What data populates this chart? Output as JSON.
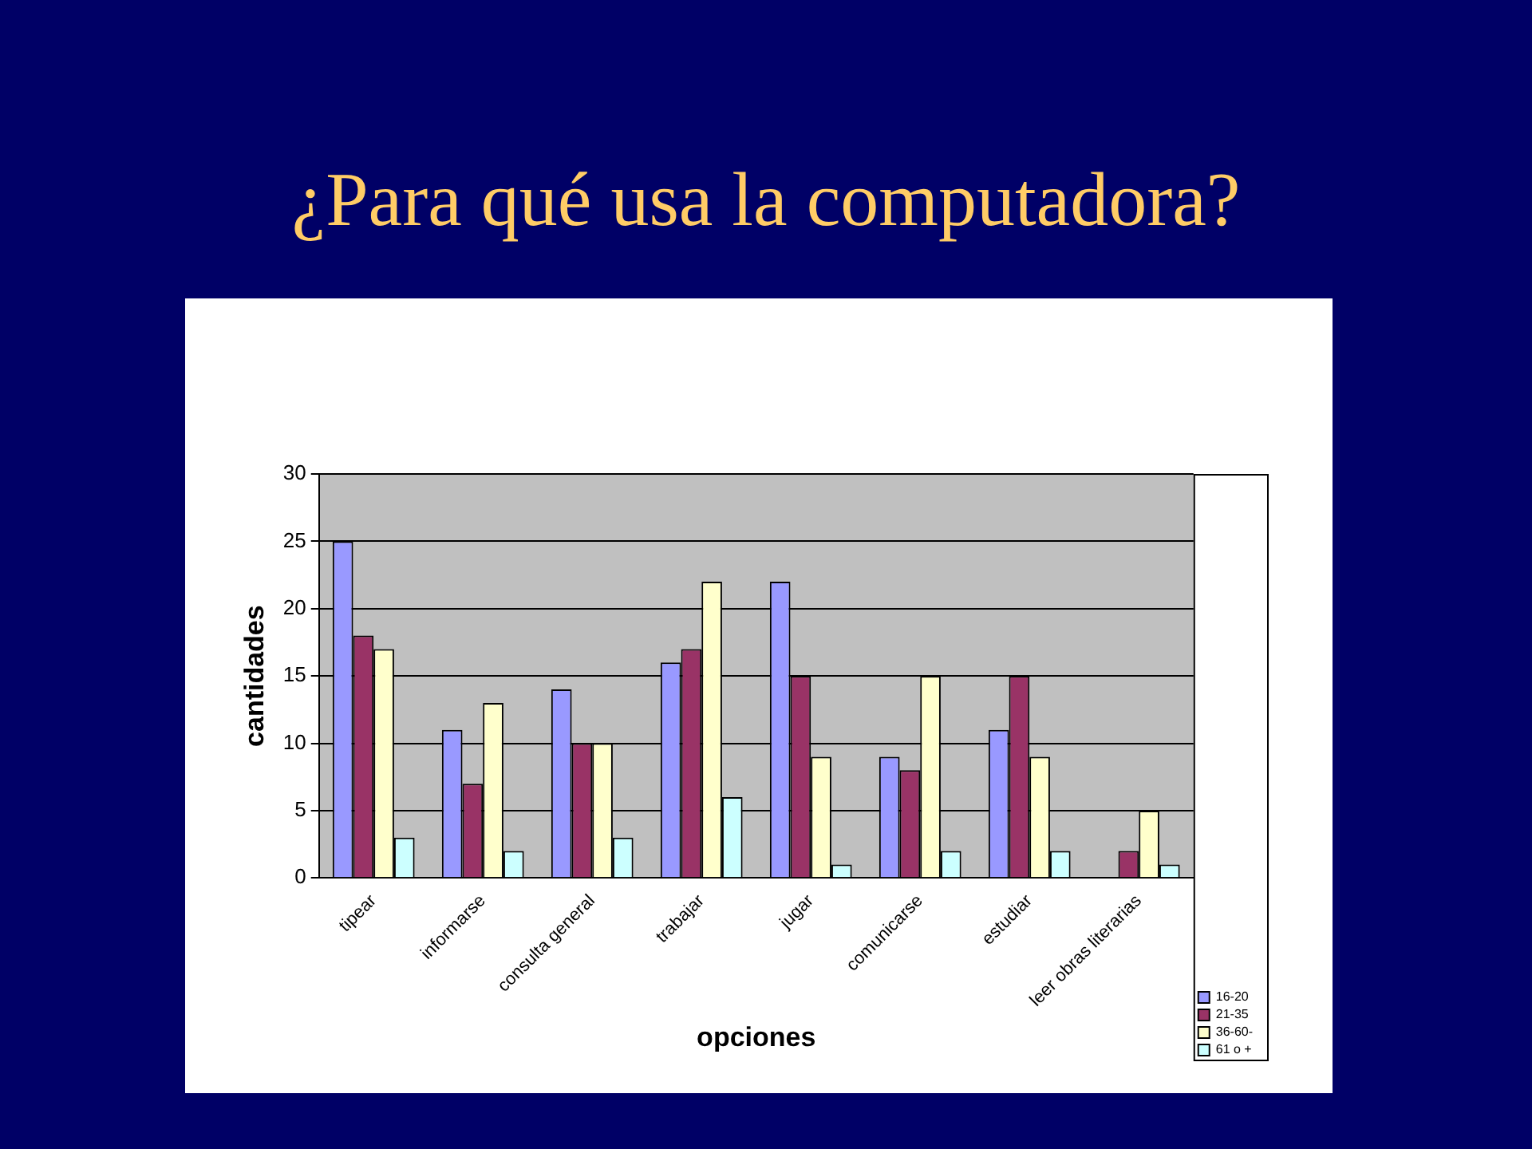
{
  "chart_data": {
    "type": "bar",
    "title": "¿Para qué usa la computadora?",
    "xlabel": "opciones",
    "ylabel": "cantidades",
    "categories": [
      "tipear",
      "informarse",
      "consulta general",
      "trabajar",
      "jugar",
      "comunicarse",
      "estudiar",
      "leer obras literarias"
    ],
    "series": [
      {
        "name": "16-20",
        "color": "#9999ff",
        "values": [
          25,
          11,
          14,
          16,
          22,
          9,
          11,
          0
        ]
      },
      {
        "name": "21-35",
        "color": "#993366",
        "values": [
          18,
          7,
          10,
          17,
          15,
          8,
          15,
          2
        ]
      },
      {
        "name": "36-60-",
        "color": "#ffffcc",
        "values": [
          17,
          13,
          10,
          22,
          9,
          15,
          9,
          5
        ]
      },
      {
        "name": "61 o +",
        "color": "#ccffff",
        "values": [
          3,
          2,
          3,
          6,
          1,
          2,
          2,
          1
        ]
      }
    ],
    "ylim": [
      0,
      30
    ],
    "yticks": [
      0,
      5,
      10,
      15,
      20,
      25,
      30
    ],
    "grid": "y",
    "legend": "bottom right"
  }
}
